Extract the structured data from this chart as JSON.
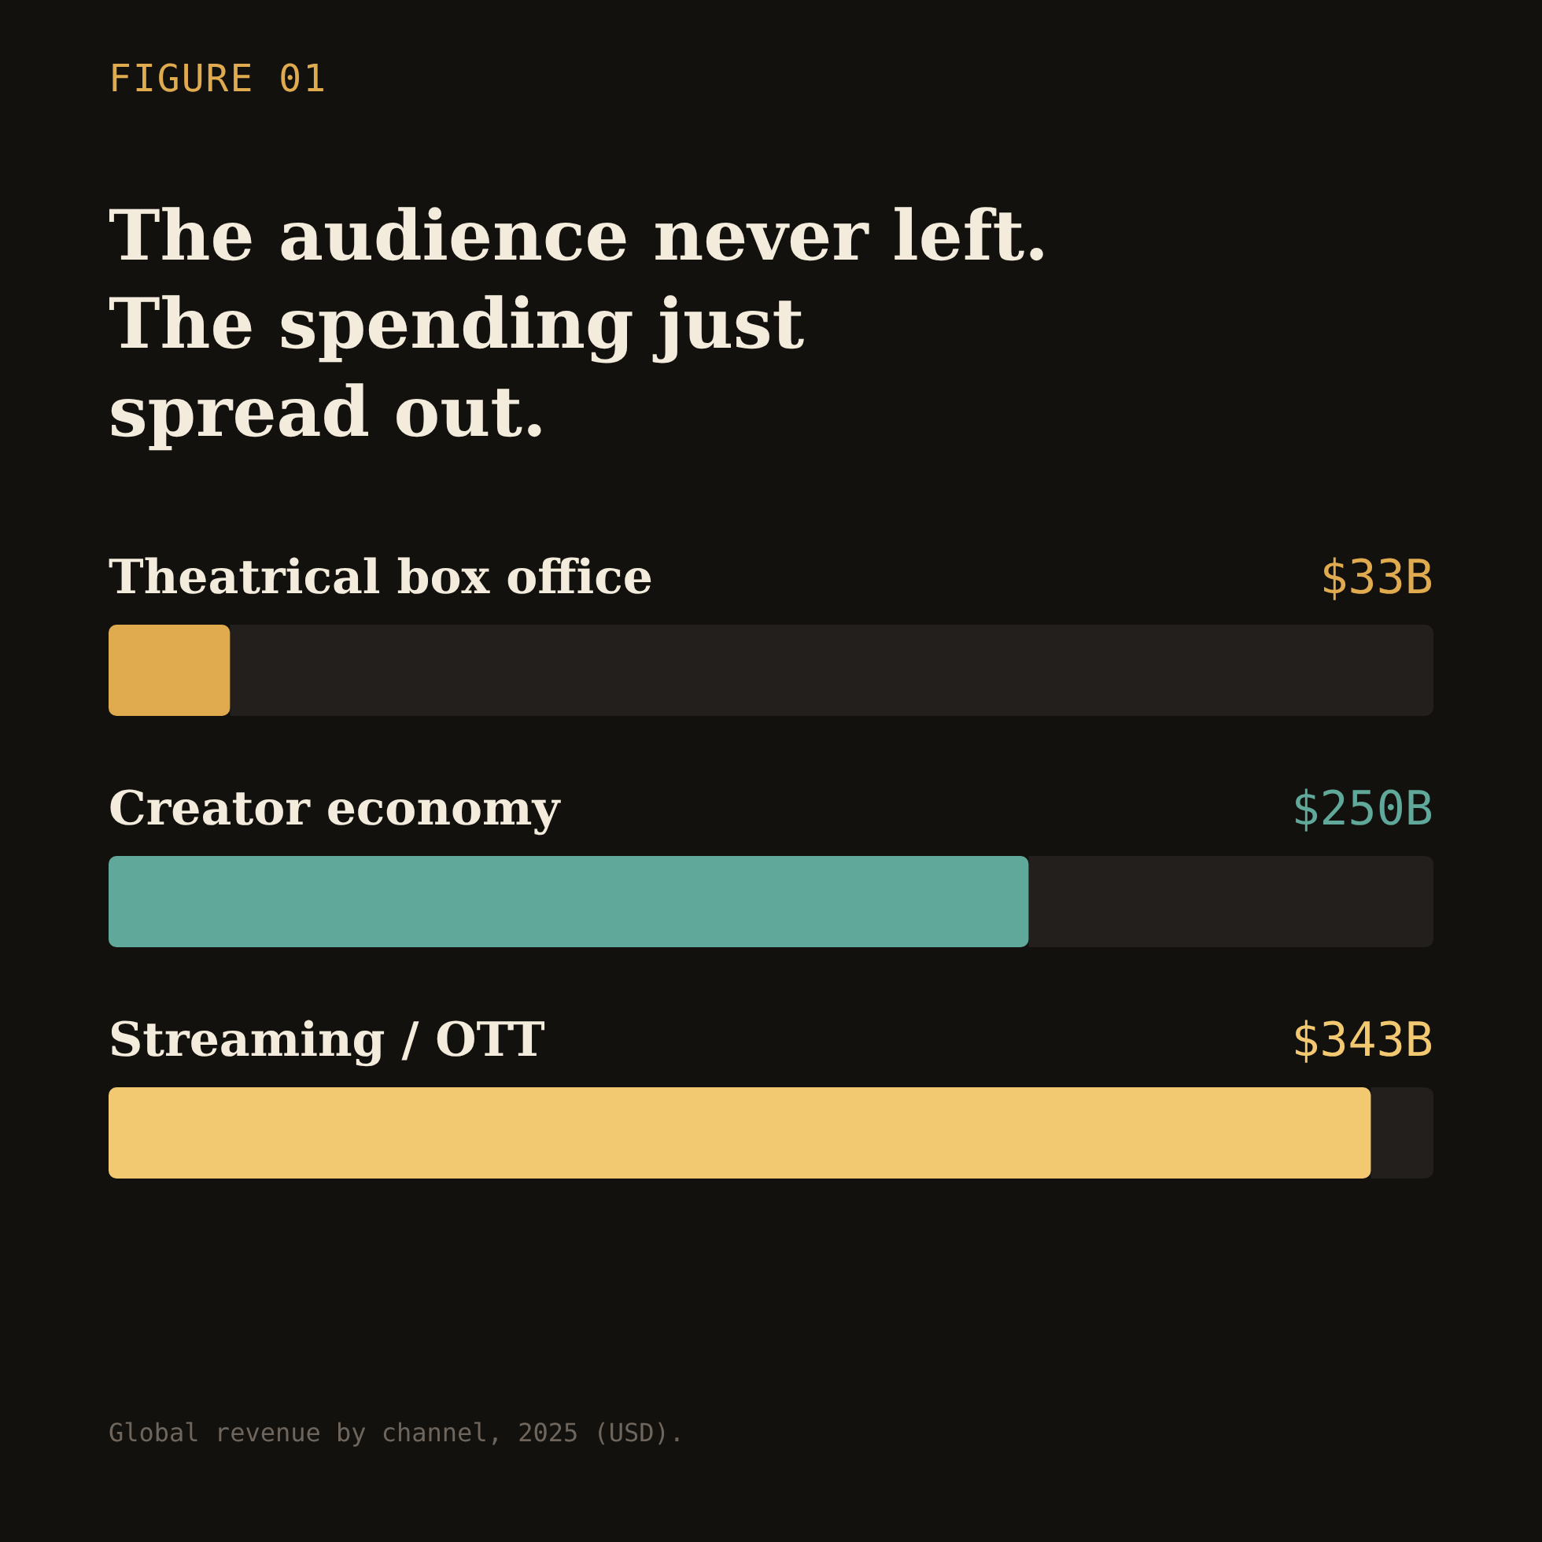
{
  "chart_data": {
    "type": "bar",
    "orientation": "horizontal",
    "subtitle": "FIGURE 01",
    "title": "The audience never left.\nThe spending just\nspread out.",
    "categories": [
      "Theatrical box office",
      "Creator economy",
      "Streaming / OTT"
    ],
    "values": [
      33,
      250,
      343
    ],
    "colors": [
      "#e0aa4f",
      "#5fa89a",
      "#f2c870"
    ],
    "value_labels": [
      "$33B",
      "$250B",
      "$343B"
    ],
    "xlim": [
      0,
      360
    ],
    "annotations": [
      "Global revenue by channel, 2025 (USD)."
    ]
  }
}
